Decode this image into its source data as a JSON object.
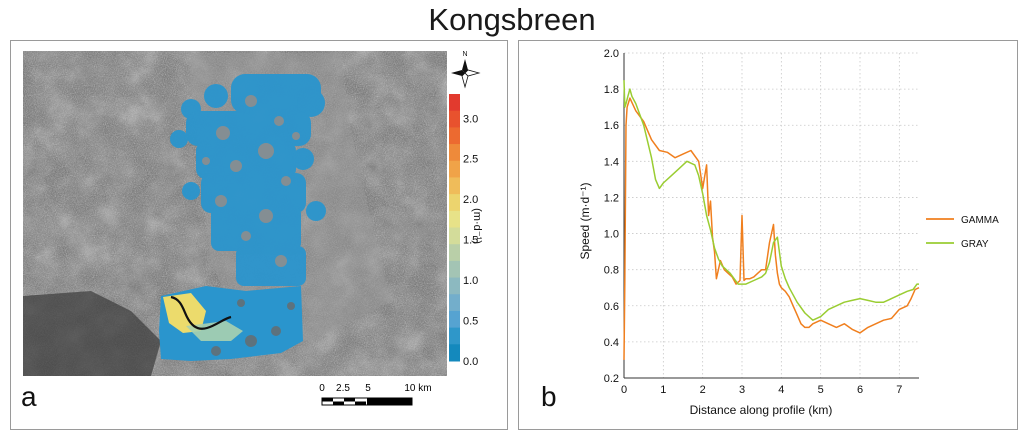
{
  "figure": {
    "title": "Kongsbreen"
  },
  "panel_a": {
    "letter": "a",
    "compass": "N",
    "colorbar": {
      "ticks": [
        "3.0",
        "2.5",
        "2.0",
        "1.5",
        "1.0",
        "0.5",
        "0.0"
      ],
      "unit_label": "(m·d⁻¹)",
      "min": 0.0,
      "max": 3.3,
      "colors": [
        "#e23a2e",
        "#e8522e",
        "#ec6a30",
        "#ee8a3a",
        "#f0a348",
        "#efbc5a",
        "#ecd46e",
        "#e7e288",
        "#d3dc9a",
        "#b9cfa8",
        "#a3c4b4",
        "#8cb9c0",
        "#73aecb",
        "#56a3d1",
        "#2f97c9",
        "#1489bd"
      ]
    },
    "scale_bar": {
      "labels": [
        "0",
        "2.5",
        "5",
        "10 km"
      ]
    }
  },
  "panel_b": {
    "letter": "b",
    "chart_data": {
      "type": "line",
      "xlabel": "Distance along profile (km)",
      "ylabel": "Speed (m·d⁻¹)",
      "xlim": [
        0,
        7.5
      ],
      "ylim": [
        0.2,
        2.0
      ],
      "xticks": [
        0,
        1,
        2,
        3,
        4,
        5,
        6,
        7
      ],
      "yticks": [
        0.2,
        0.4,
        0.6,
        0.8,
        1.0,
        1.2,
        1.4,
        1.6,
        1.8,
        2.0
      ],
      "grid": true,
      "legend_position": "right",
      "series": [
        {
          "name": "GAMMA",
          "color": "#f07f1e",
          "x": [
            0.0,
            0.02,
            0.05,
            0.08,
            0.15,
            0.3,
            0.5,
            0.7,
            0.9,
            1.1,
            1.3,
            1.5,
            1.7,
            1.9,
            2.0,
            2.1,
            2.15,
            2.2,
            2.25,
            2.3,
            2.35,
            2.45,
            2.55,
            2.65,
            2.75,
            2.85,
            2.95,
            3.0,
            3.05,
            3.1,
            3.2,
            3.3,
            3.4,
            3.5,
            3.6,
            3.7,
            3.8,
            3.85,
            3.9,
            3.95,
            4.0,
            4.1,
            4.2,
            4.3,
            4.4,
            4.5,
            4.6,
            4.7,
            4.8,
            5.0,
            5.2,
            5.4,
            5.6,
            5.8,
            6.0,
            6.2,
            6.4,
            6.6,
            6.8,
            7.0,
            7.2,
            7.3,
            7.4,
            7.5
          ],
          "y": [
            0.3,
            0.72,
            1.6,
            1.7,
            1.75,
            1.68,
            1.62,
            1.52,
            1.46,
            1.45,
            1.42,
            1.44,
            1.46,
            1.4,
            1.25,
            1.38,
            1.1,
            1.18,
            0.98,
            0.9,
            0.75,
            0.85,
            0.8,
            0.78,
            0.76,
            0.72,
            0.74,
            1.1,
            0.74,
            0.75,
            0.75,
            0.76,
            0.78,
            0.8,
            0.8,
            0.95,
            1.05,
            0.88,
            0.78,
            0.72,
            0.7,
            0.68,
            0.65,
            0.6,
            0.55,
            0.5,
            0.48,
            0.48,
            0.5,
            0.52,
            0.5,
            0.48,
            0.5,
            0.47,
            0.45,
            0.48,
            0.5,
            0.52,
            0.53,
            0.58,
            0.6,
            0.64,
            0.69,
            0.7
          ]
        },
        {
          "name": "GRAY",
          "color": "#9acd32",
          "x": [
            0.0,
            0.02,
            0.05,
            0.1,
            0.15,
            0.2,
            0.3,
            0.5,
            0.7,
            0.8,
            0.9,
            1.0,
            1.2,
            1.4,
            1.6,
            1.8,
            1.9,
            2.0,
            2.1,
            2.2,
            2.3,
            2.4,
            2.5,
            2.7,
            2.9,
            3.1,
            3.3,
            3.5,
            3.6,
            3.7,
            3.8,
            3.9,
            4.0,
            4.1,
            4.2,
            4.4,
            4.6,
            4.8,
            5.0,
            5.2,
            5.4,
            5.6,
            5.8,
            6.0,
            6.2,
            6.4,
            6.6,
            6.8,
            7.0,
            7.2,
            7.35,
            7.45,
            7.5
          ],
          "y": [
            1.85,
            1.7,
            1.72,
            1.76,
            1.8,
            1.76,
            1.72,
            1.6,
            1.42,
            1.3,
            1.25,
            1.28,
            1.32,
            1.36,
            1.4,
            1.38,
            1.32,
            1.22,
            1.1,
            1.02,
            0.92,
            0.86,
            0.82,
            0.78,
            0.72,
            0.72,
            0.74,
            0.76,
            0.78,
            0.84,
            0.95,
            0.98,
            0.82,
            0.75,
            0.7,
            0.62,
            0.56,
            0.52,
            0.54,
            0.58,
            0.6,
            0.62,
            0.63,
            0.64,
            0.63,
            0.62,
            0.62,
            0.64,
            0.66,
            0.68,
            0.69,
            0.72,
            0.72
          ]
        }
      ]
    }
  }
}
